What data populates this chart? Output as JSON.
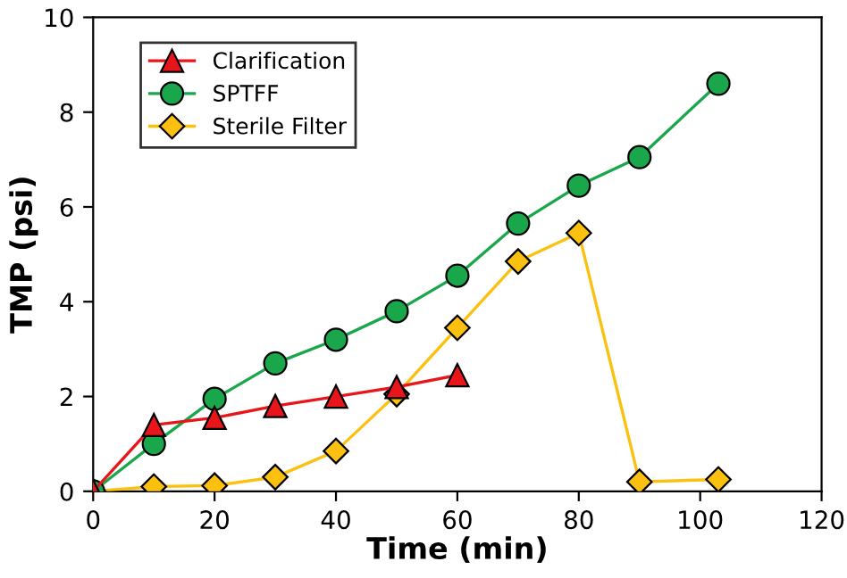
{
  "chart_data": {
    "type": "line",
    "xlabel": "Time (min)",
    "ylabel": "TMP (psi)",
    "xlim": [
      0,
      120
    ],
    "xticks": [
      0,
      20,
      40,
      60,
      80,
      100,
      120
    ],
    "ylim": [
      0,
      10
    ],
    "yticks": [
      0,
      2,
      4,
      6,
      8,
      10
    ],
    "grid": false,
    "legend": "top left",
    "series": [
      {
        "name": "Clarification",
        "color": "#e8161b",
        "marker": "triangle",
        "x": [
          0,
          10,
          20,
          30,
          40,
          50,
          60
        ],
        "values": [
          0,
          1.4,
          1.55,
          1.8,
          2.0,
          2.2,
          2.45
        ]
      },
      {
        "name": "SPTFF",
        "color": "#1aa64b",
        "marker": "circle",
        "x": [
          0,
          10,
          20,
          30,
          40,
          50,
          60,
          70,
          80,
          90,
          103
        ],
        "values": [
          0,
          1.0,
          1.95,
          2.7,
          3.2,
          3.8,
          4.55,
          5.65,
          6.45,
          7.05,
          8.6
        ]
      },
      {
        "name": "Sterile Filter",
        "color": "#fcc010",
        "marker": "diamond",
        "x": [
          0,
          10,
          20,
          30,
          40,
          50,
          60,
          70,
          80,
          90,
          103
        ],
        "values": [
          0,
          0.1,
          0.12,
          0.3,
          0.85,
          2.05,
          3.45,
          4.85,
          5.45,
          0.2,
          0.25
        ]
      }
    ]
  }
}
